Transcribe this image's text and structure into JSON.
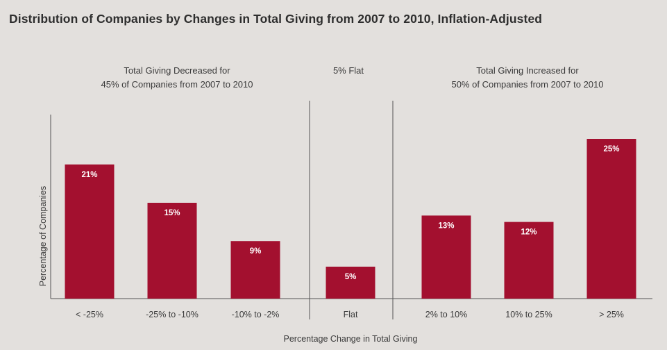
{
  "title": "Distribution of Companies by Changes in Total Giving from 2007 to 2010, Inflation-Adjusted",
  "groups": {
    "decreased": [
      "Total Giving Decreased for",
      "45% of Companies from 2007 to 2010"
    ],
    "flat": [
      "5% Flat"
    ],
    "increased": [
      "Total Giving Increased for",
      "50% of Companies from 2007 to 2010"
    ]
  },
  "chart_data": {
    "type": "bar",
    "categories": [
      "< -25%",
      "-25% to -10%",
      "-10% to -2%",
      "Flat",
      "2% to 10%",
      "10% to 25%",
      "> 25%"
    ],
    "values": [
      21,
      15,
      9,
      5,
      13,
      12,
      25
    ],
    "data_labels": [
      "21%",
      "15%",
      "9%",
      "5%",
      "13%",
      "12%",
      "25%"
    ],
    "xlabel": "Percentage Change in Total Giving",
    "ylabel": "Percentage of Companies",
    "ylim": [
      0,
      30
    ],
    "grid": false,
    "bar_color": "#a3102f",
    "label_color": "#ffffff"
  }
}
